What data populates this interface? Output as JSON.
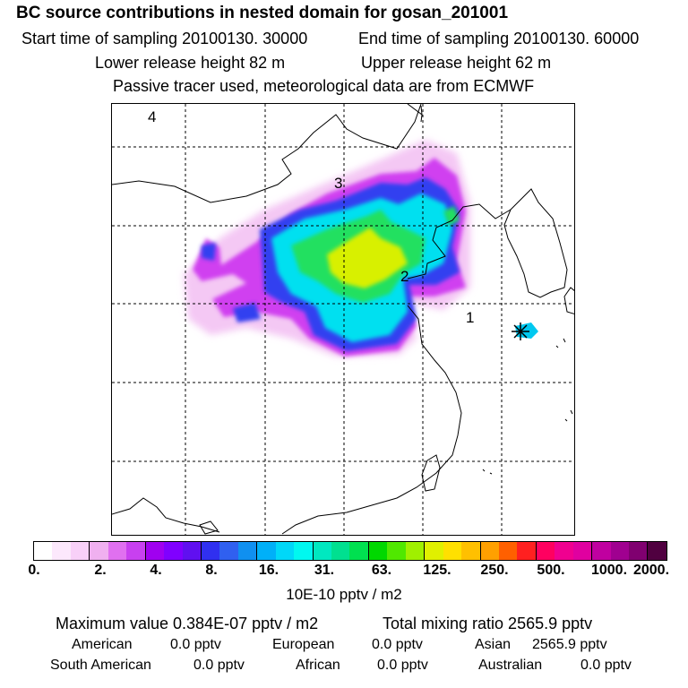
{
  "header": {
    "title": "BC  source contributions in nested domain for gosan_201001",
    "start_label": "Start time of sampling 20100130. 30000",
    "end_label": "End time of sampling 20100130. 60000",
    "lower_label": "Lower release height   82 m",
    "upper_label": "Upper release height   62 m",
    "tracer_note": "Passive tracer used, meteorological data are from ECMWF"
  },
  "map": {
    "region_labels": [
      "4",
      "3",
      "2",
      "1"
    ],
    "receptor_marker": "star-marker",
    "gridlines": "dashed"
  },
  "colorbar": {
    "tick_labels": [
      "0.",
      "2.",
      "4.",
      "8.",
      "16.",
      "31.",
      "63.",
      "125.",
      "250.",
      "500.",
      "1000.",
      "2000."
    ],
    "units": "10E-10 pptv / m2",
    "colors": [
      "#ffffff",
      "#fce8fc",
      "#f8d0f8",
      "#f0b0f0",
      "#e070f0",
      "#c840f0",
      "#a000f0",
      "#8000ff",
      "#6010f0",
      "#3030f0",
      "#3060f0",
      "#1090f0",
      "#00b0f8",
      "#00d8f8",
      "#00f8f0",
      "#00e8c0",
      "#00e090",
      "#00e050",
      "#00d800",
      "#50e800",
      "#a0f000",
      "#e0f000",
      "#ffe000",
      "#ffc000",
      "#ffa000",
      "#ff6000",
      "#ff2020",
      "#ff0060",
      "#f00090",
      "#e000a0",
      "#c000a0",
      "#a00090",
      "#800070",
      "#500040"
    ]
  },
  "footer": {
    "max_label": "Maximum value  0.384E-07 pptv / m2",
    "total_label": "Total mixing ratio     2565.9 pptv",
    "american_label": "American",
    "american_value": "0.0 pptv",
    "european_label": "European",
    "european_value": "0.0 pptv",
    "asian_label": "Asian",
    "asian_value": "2565.9 pptv",
    "south_american_label": "South American",
    "south_american_value": "0.0 pptv",
    "african_label": "African",
    "african_value": "0.0 pptv",
    "australian_label": "Australian",
    "australian_value": "0.0 pptv"
  }
}
